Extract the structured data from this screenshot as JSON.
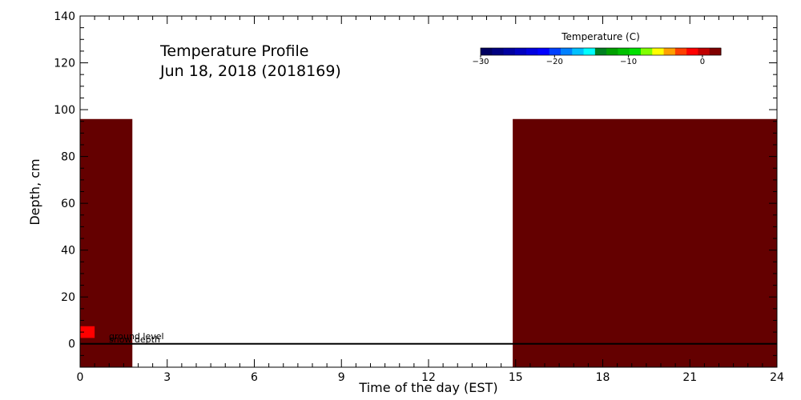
{
  "chart_data": {
    "type": "heatmap",
    "title": "Temperature Profile",
    "subtitle": "Jun 18, 2018 (2018169)",
    "xlabel": "Time of the day (EST)",
    "ylabel": "Depth, cm",
    "xlim": [
      0,
      24
    ],
    "ylim": [
      -10,
      140
    ],
    "xticks": [
      0,
      3,
      6,
      9,
      12,
      15,
      18,
      21,
      24
    ],
    "yticks": [
      0,
      20,
      40,
      60,
      80,
      100,
      120,
      140
    ],
    "cells": [
      {
        "x0": 0,
        "x1": 1.8,
        "y0": -10,
        "y1": 96,
        "color": "#640000"
      },
      {
        "x0": 14.9,
        "x1": 24,
        "y0": -10,
        "y1": 96,
        "color": "#640000"
      },
      {
        "x0": 0,
        "x1": 0.5,
        "y0": 2.5,
        "y1": 7.5,
        "color": "#ff0000"
      }
    ],
    "ground_level": 0,
    "annotations": [
      "ground level",
      "snow depth"
    ],
    "colorbar": {
      "title": "Temperature (C)",
      "range": [
        -30,
        2.5
      ],
      "ticks": [
        -30,
        -20,
        -10,
        0
      ],
      "colors": [
        "#000060",
        "#000080",
        "#0000a0",
        "#0000c0",
        "#0000e0",
        "#0000ff",
        "#0040ff",
        "#0080ff",
        "#00c0ff",
        "#00ffff",
        "#008020",
        "#00a000",
        "#00c000",
        "#00e000",
        "#80ff00",
        "#ffff00",
        "#ffa000",
        "#ff4000",
        "#ff0000",
        "#c00000",
        "#800000"
      ]
    }
  }
}
